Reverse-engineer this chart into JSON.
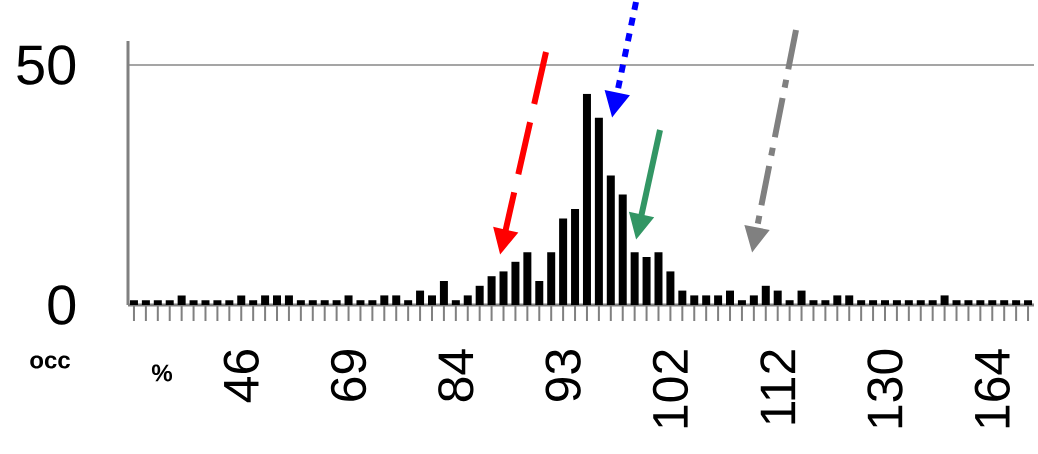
{
  "chart_data": {
    "type": "bar",
    "xlabel": "%",
    "ylabel": "occ",
    "categories": [
      null,
      null,
      null,
      null,
      null,
      null,
      null,
      null,
      null,
      "46",
      null,
      null,
      null,
      null,
      null,
      null,
      null,
      null,
      "69",
      null,
      null,
      null,
      null,
      null,
      null,
      null,
      null,
      "84",
      null,
      null,
      null,
      null,
      null,
      null,
      null,
      null,
      "93",
      null,
      null,
      null,
      null,
      null,
      null,
      null,
      null,
      "102",
      null,
      null,
      null,
      null,
      null,
      null,
      null,
      null,
      "112",
      null,
      null,
      null,
      null,
      null,
      null,
      null,
      null,
      "130",
      null,
      null,
      null,
      null,
      null,
      null,
      null,
      null,
      "164",
      null,
      null,
      null
    ],
    "values": [
      1,
      1,
      1,
      1,
      2,
      1,
      1,
      1,
      1,
      2,
      1,
      2,
      2,
      2,
      1,
      1,
      1,
      1,
      2,
      1,
      1,
      2,
      2,
      1,
      3,
      2,
      5,
      1,
      2,
      4,
      6,
      7,
      9,
      11,
      5,
      11,
      18,
      20,
      44,
      39,
      27,
      23,
      11,
      10,
      11,
      7,
      3,
      2,
      2,
      2,
      3,
      1,
      2,
      4,
      3,
      1,
      3,
      1,
      1,
      2,
      2,
      1,
      1,
      1,
      1,
      1,
      1,
      1,
      2,
      1,
      1,
      1,
      1,
      1,
      1,
      1
    ],
    "color": "#000000",
    "ylim": [
      0,
      55
    ],
    "yticks": [
      0,
      50
    ],
    "grid": "y"
  }
}
